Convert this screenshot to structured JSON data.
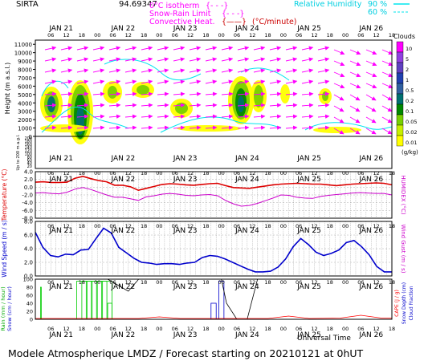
{
  "header": {
    "station": "SIRTA",
    "coords": "94.69347",
    "legend_right": [
      {
        "label": "Relative Humidity",
        "value": "90 %",
        "color": "#00e5ee"
      },
      {
        "label": "",
        "value": "60 %",
        "color": "#00e5ee"
      }
    ],
    "legend_center": [
      {
        "label": "0°C isotherm",
        "sym": "{- - -}",
        "color": "#ff00ff"
      },
      {
        "label": "Snow-Rain Limit",
        "sym": "{- - -}",
        "color": "#ff00ff"
      },
      {
        "label": "Convective Heat.",
        "sym": "{——}",
        "unit": "(°C/minute)",
        "color": "#cc0000"
      }
    ]
  },
  "time_axis": {
    "days": [
      "JAN 21",
      "JAN 22",
      "JAN 23",
      "JAN 24",
      "JAN 25",
      "JAN 26"
    ],
    "hour_ticks": [
      "06",
      "12",
      "18",
      "00",
      "06",
      "12",
      "18",
      "00",
      "06",
      "12",
      "18",
      "00",
      "06",
      "12",
      "18",
      "00",
      "06",
      "12",
      "18",
      "00",
      "06",
      "12",
      "18"
    ],
    "xlabel": "Universal Time"
  },
  "clouds_legend": {
    "title": "Clouds",
    "unit": "(g/kg)",
    "levels": [
      "0.01",
      "0.02",
      "0.05",
      "0.1",
      "0.2",
      "0.5",
      "1",
      "2",
      "5",
      "10"
    ],
    "colors": [
      "#ffff00",
      "#c8f000",
      "#78d000",
      "#008800",
      "#007070",
      "#3060a0",
      "#2040b0",
      "#6040c0",
      "#9040e0",
      "#ff00ff"
    ]
  },
  "chart_data": [
    {
      "type": "heatmap",
      "name": "clouds",
      "ylabel": "Height (m a.s.l.)",
      "ylabel2": "Up to 200 m a.g.l.",
      "yticks": [
        "11000",
        "10000",
        "9000",
        "8000",
        "7000",
        "6000",
        "5000",
        "4000",
        "3000",
        "2000",
        "1000",
        "0"
      ],
      "yticks_low": [
        "200",
        "180",
        "160",
        "140",
        "120",
        "100",
        "80",
        "60",
        "40",
        "20"
      ],
      "ylim": [
        0,
        11500
      ]
    },
    {
      "type": "line",
      "name": "temperature",
      "ylabel": "Temperature (°C)",
      "ylabel2": "HUMIDEX (°C)",
      "yticks": [
        "4.0",
        "2.0",
        "0.0",
        "-2.0",
        "-4.0",
        "-6.0",
        "-8.0"
      ],
      "ylim": [
        -8,
        4
      ],
      "series": [
        {
          "color": "#dd0000",
          "values": [
            1.3,
            1.4,
            1.2,
            1.2,
            1.3,
            2.3,
            2.8,
            2.2,
            1.7,
            1.4,
            0.5,
            0.5,
            0.1,
            -0.8,
            -0.3,
            0.2,
            0.7,
            0.9,
            0.8,
            0.6,
            0.5,
            0.7,
            0.9,
            1.0,
            0.4,
            -0.1,
            -0.2,
            -0.3,
            0.0,
            0.3,
            0.6,
            0.8,
            0.9,
            1.0,
            0.9,
            0.8,
            0.8,
            0.6,
            0.4,
            0.6,
            0.8,
            0.9,
            1.0,
            1.1,
            1.0,
            0.6
          ]
        },
        {
          "color": "#cc00cc",
          "values": [
            -1.5,
            -1.4,
            -1.6,
            -1.7,
            -1.3,
            -0.5,
            -0.1,
            -0.6,
            -1.3,
            -2.0,
            -2.6,
            -2.6,
            -3.0,
            -3.4,
            -2.5,
            -2.2,
            -1.8,
            -1.6,
            -1.8,
            -2.1,
            -2.2,
            -2.0,
            -1.9,
            -2.2,
            -3.4,
            -4.3,
            -4.9,
            -4.7,
            -4.2,
            -3.5,
            -2.8,
            -2.0,
            -2.1,
            -2.6,
            -2.8,
            -2.9,
            -2.4,
            -2.1,
            -1.9,
            -1.7,
            -1.5,
            -1.4,
            -1.5,
            -1.6,
            -1.6,
            -2.0
          ]
        }
      ]
    },
    {
      "type": "line",
      "name": "wind",
      "ylabel": "Wind Speed (m / s)",
      "ylabel2": "Wind Gust (m / s)",
      "yticks": [
        "8.0",
        "6.0",
        "4.0",
        "2.0",
        "0.0"
      ],
      "ylim": [
        0,
        8
      ],
      "series": [
        {
          "color": "#0000cc",
          "values": [
            6.4,
            4.2,
            3.0,
            2.8,
            3.2,
            3.1,
            3.8,
            3.9,
            5.5,
            7.0,
            6.3,
            4.2,
            3.4,
            2.6,
            2.0,
            1.9,
            1.7,
            1.8,
            1.8,
            1.7,
            1.9,
            2.0,
            2.7,
            3.0,
            2.9,
            2.5,
            2.0,
            1.5,
            1.0,
            0.6,
            0.6,
            0.7,
            1.3,
            2.5,
            4.3,
            5.5,
            4.6,
            3.5,
            3.0,
            3.3,
            3.8,
            4.9,
            5.2,
            4.3,
            3.1,
            1.4,
            0.6,
            0.6
          ]
        }
      ]
    },
    {
      "type": "bar",
      "name": "precipitation",
      "ylabel": "Rain (mm / hour)",
      "ylabel2": "Snow (cm / hour)",
      "ylabel3": "CAPE (J / g)",
      "ylabel4": "Snow Depth (cm)",
      "ylabel5": "Cloud Fraction",
      "yticks": [
        "100",
        "80",
        "60",
        "40",
        "20",
        "0"
      ],
      "ylim": [
        0,
        100
      ]
    }
  ],
  "footer": {
    "text": "Modele Atmospherique LMDZ / Forecast starting on 20210121 at 0hUT"
  }
}
